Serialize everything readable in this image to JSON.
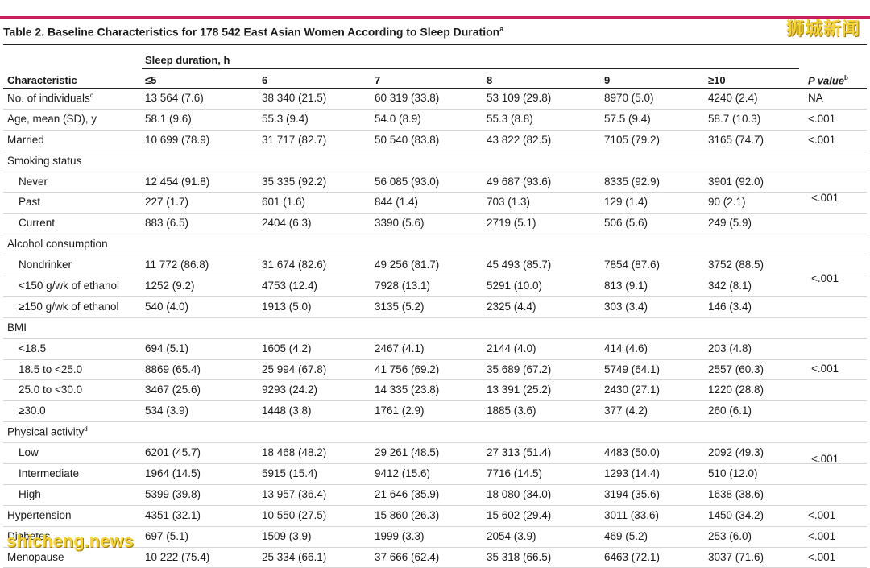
{
  "watermark_top": "狮城新闻",
  "watermark_bottom": "shicheng.news",
  "title": "Table 2. Baseline Characteristics for 178 542 East Asian Women According to Sleep Duration",
  "title_sup": "a",
  "header": {
    "group": "Sleep duration, h",
    "characteristic": "Characteristic",
    "cols": [
      "≤5",
      "6",
      "7",
      "8",
      "9",
      "≥10"
    ],
    "pvalue": "P value",
    "pvalue_sup": "b"
  },
  "rows": [
    {
      "label": "No. of individuals",
      "sup": "c",
      "sub": false,
      "vals": [
        "13 564 (7.6)",
        "38 340 (21.5)",
        "60 319 (33.8)",
        "53 109 (29.8)",
        "8970 (5.0)",
        "4240 (2.4)"
      ],
      "p": "NA"
    },
    {
      "label": "Age, mean (SD), y",
      "sup": "",
      "sub": false,
      "vals": [
        "58.1 (9.6)",
        "55.3 (9.4)",
        "54.0 (8.9)",
        "55.3 (8.8)",
        "57.5 (9.4)",
        "58.7 (10.3)"
      ],
      "p": "<.001"
    },
    {
      "label": "Married",
      "sup": "",
      "sub": false,
      "vals": [
        "10 699 (78.9)",
        "31 717 (82.7)",
        "50 540 (83.8)",
        "43 822 (82.5)",
        "7105 (79.2)",
        "3165 (74.7)"
      ],
      "p": "<.001"
    },
    {
      "label": "Smoking status",
      "sup": "",
      "sub": false,
      "vals": [
        "",
        "",
        "",
        "",
        "",
        ""
      ],
      "p": ""
    },
    {
      "label": "Never",
      "sup": "",
      "sub": true,
      "vals": [
        "12 454 (91.8)",
        "35 335 (92.2)",
        "56 085 (93.0)",
        "49 687 (93.6)",
        "8335 (92.9)",
        "3901 (92.0)"
      ],
      "p": ""
    },
    {
      "label": "Past",
      "sup": "",
      "sub": true,
      "vals": [
        "227 (1.7)",
        "601 (1.6)",
        "844 (1.4)",
        "703 (1.3)",
        "129 (1.4)",
        "90 (2.1)"
      ],
      "p": ""
    },
    {
      "label": "Current",
      "sup": "",
      "sub": true,
      "vals": [
        "883 (6.5)",
        "2404 (6.3)",
        "3390 (5.6)",
        "2719 (5.1)",
        "506 (5.6)",
        "249 (5.9)"
      ],
      "p": ""
    },
    {
      "label": "Alcohol consumption",
      "sup": "",
      "sub": false,
      "vals": [
        "",
        "",
        "",
        "",
        "",
        ""
      ],
      "p": ""
    },
    {
      "label": "Nondrinker",
      "sup": "",
      "sub": true,
      "vals": [
        "11 772 (86.8)",
        "31 674 (82.6)",
        "49 256 (81.7)",
        "45 493 (85.7)",
        "7854 (87.6)",
        "3752 (88.5)"
      ],
      "p": ""
    },
    {
      "label": "<150 g/wk of ethanol",
      "sup": "",
      "sub": true,
      "vals": [
        "1252 (9.2)",
        "4753 (12.4)",
        "7928 (13.1)",
        "5291 (10.0)",
        "813 (9.1)",
        "342 (8.1)"
      ],
      "p": ""
    },
    {
      "label": "≥150 g/wk of ethanol",
      "sup": "",
      "sub": true,
      "vals": [
        "540 (4.0)",
        "1913 (5.0)",
        "3135 (5.2)",
        "2325 (4.4)",
        "303 (3.4)",
        "146 (3.4)"
      ],
      "p": ""
    },
    {
      "label": "BMI",
      "sup": "",
      "sub": false,
      "vals": [
        "",
        "",
        "",
        "",
        "",
        ""
      ],
      "p": ""
    },
    {
      "label": "<18.5",
      "sup": "",
      "sub": true,
      "vals": [
        "694 (5.1)",
        "1605 (4.2)",
        "2467 (4.1)",
        "2144 (4.0)",
        "414 (4.6)",
        "203 (4.8)"
      ],
      "p": ""
    },
    {
      "label": "18.5 to <25.0",
      "sup": "",
      "sub": true,
      "vals": [
        "8869 (65.4)",
        "25 994 (67.8)",
        "41 756 (69.2)",
        "35 689 (67.2)",
        "5749 (64.1)",
        "2557 (60.3)"
      ],
      "p": ""
    },
    {
      "label": "25.0 to <30.0",
      "sup": "",
      "sub": true,
      "vals": [
        "3467 (25.6)",
        "9293 (24.2)",
        "14 335 (23.8)",
        "13 391 (25.2)",
        "2430 (27.1)",
        "1220 (28.8)"
      ],
      "p": ""
    },
    {
      "label": "≥30.0",
      "sup": "",
      "sub": true,
      "vals": [
        "534 (3.9)",
        "1448 (3.8)",
        "1761 (2.9)",
        "1885 (3.6)",
        "377 (4.2)",
        "260 (6.1)"
      ],
      "p": ""
    },
    {
      "label": "Physical activity",
      "sup": "d",
      "sub": false,
      "vals": [
        "",
        "",
        "",
        "",
        "",
        ""
      ],
      "p": ""
    },
    {
      "label": "Low",
      "sup": "",
      "sub": true,
      "vals": [
        "6201 (45.7)",
        "18 468 (48.2)",
        "29 261 (48.5)",
        "27 313 (51.4)",
        "4483 (50.0)",
        "2092 (49.3)"
      ],
      "p": ""
    },
    {
      "label": "Intermediate",
      "sup": "",
      "sub": true,
      "vals": [
        "1964 (14.5)",
        "5915 (15.4)",
        "9412 (15.6)",
        "7716 (14.5)",
        "1293 (14.4)",
        "510 (12.0)"
      ],
      "p": ""
    },
    {
      "label": "High",
      "sup": "",
      "sub": true,
      "vals": [
        "5399 (39.8)",
        "13 957 (36.4)",
        "21 646 (35.9)",
        "18 080 (34.0)",
        "3194 (35.6)",
        "1638 (38.6)"
      ],
      "p": ""
    },
    {
      "label": "Hypertension",
      "sup": "",
      "sub": false,
      "vals": [
        "4351 (32.1)",
        "10 550 (27.5)",
        "15 860 (26.3)",
        "15 602 (29.4)",
        "3011 (33.6)",
        "1450 (34.2)"
      ],
      "p": "<.001"
    },
    {
      "label": "Diabetes",
      "sup": "",
      "sub": false,
      "vals": [
        "697 (5.1)",
        "1509 (3.9)",
        "1999 (3.3)",
        "2054 (3.9)",
        "469 (5.2)",
        "253 (6.0)"
      ],
      "p": "<.001"
    },
    {
      "label": "Menopause",
      "sup": "",
      "sub": false,
      "vals": [
        "10 222 (75.4)",
        "25 334 (66.1)",
        "37 666 (62.4)",
        "35 318 (66.5)",
        "6463 (72.1)",
        "3037 (71.6)"
      ],
      "p": "<.001"
    }
  ],
  "group_pvalues": [
    {
      "label": "<.001",
      "first_row": 4,
      "last_row": 6
    },
    {
      "label": "<.001",
      "first_row": 8,
      "last_row": 10
    },
    {
      "label": "<.001",
      "first_row": 12,
      "last_row": 15
    },
    {
      "label": "<.001",
      "first_row": 17,
      "last_row": 19
    }
  ]
}
